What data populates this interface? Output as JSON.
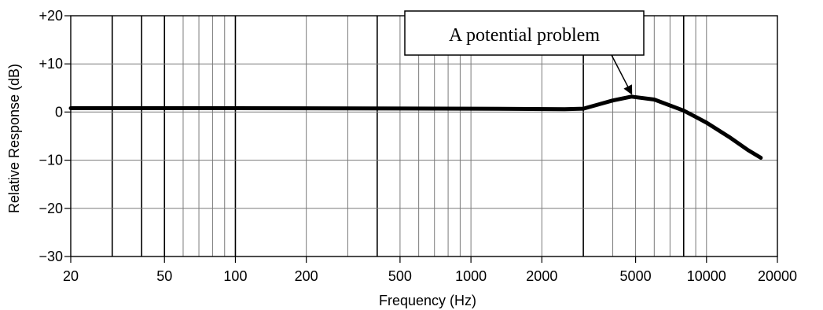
{
  "chart_data": {
    "type": "line",
    "xlabel": "Frequency (Hz)",
    "ylabel": "Relative Response (dB)",
    "x_scale": "log",
    "xlim": [
      20,
      20000
    ],
    "ylim": [
      -30,
      20
    ],
    "x_tick_values": [
      20,
      50,
      100,
      200,
      500,
      1000,
      2000,
      5000,
      10000,
      20000
    ],
    "x_tick_labels": [
      "20",
      "50",
      "100",
      "200",
      "500",
      "1000",
      "2000",
      "5000",
      "10000",
      "20000"
    ],
    "x_grid_values": [
      20,
      30,
      40,
      50,
      60,
      70,
      80,
      90,
      100,
      200,
      300,
      400,
      500,
      600,
      700,
      800,
      900,
      1000,
      2000,
      3000,
      4000,
      5000,
      6000,
      7000,
      8000,
      9000,
      10000,
      20000
    ],
    "x_major_grid_values": [
      30,
      40,
      50,
      100,
      400,
      3000,
      8000
    ],
    "y_tick_values": [
      20,
      10,
      0,
      -10,
      -20,
      -30
    ],
    "y_tick_labels": [
      "+20",
      "+10",
      "0",
      "−10",
      "−20",
      "−30"
    ],
    "grid": true,
    "series": [
      {
        "x": [
          20,
          100,
          1000,
          2500,
          3000,
          4000,
          4800,
          6000,
          8000,
          10000,
          12500,
          15000,
          17000
        ],
        "y": [
          0.8,
          0.8,
          0.7,
          0.6,
          0.7,
          2.4,
          3.2,
          2.6,
          0.3,
          -2.2,
          -5.2,
          -7.9,
          -9.5
        ],
        "color": "#000000"
      }
    ],
    "annotations": [
      {
        "text": "A potential problem",
        "arrow_to": {
          "x": 4800,
          "y": 3.2
        }
      }
    ]
  }
}
